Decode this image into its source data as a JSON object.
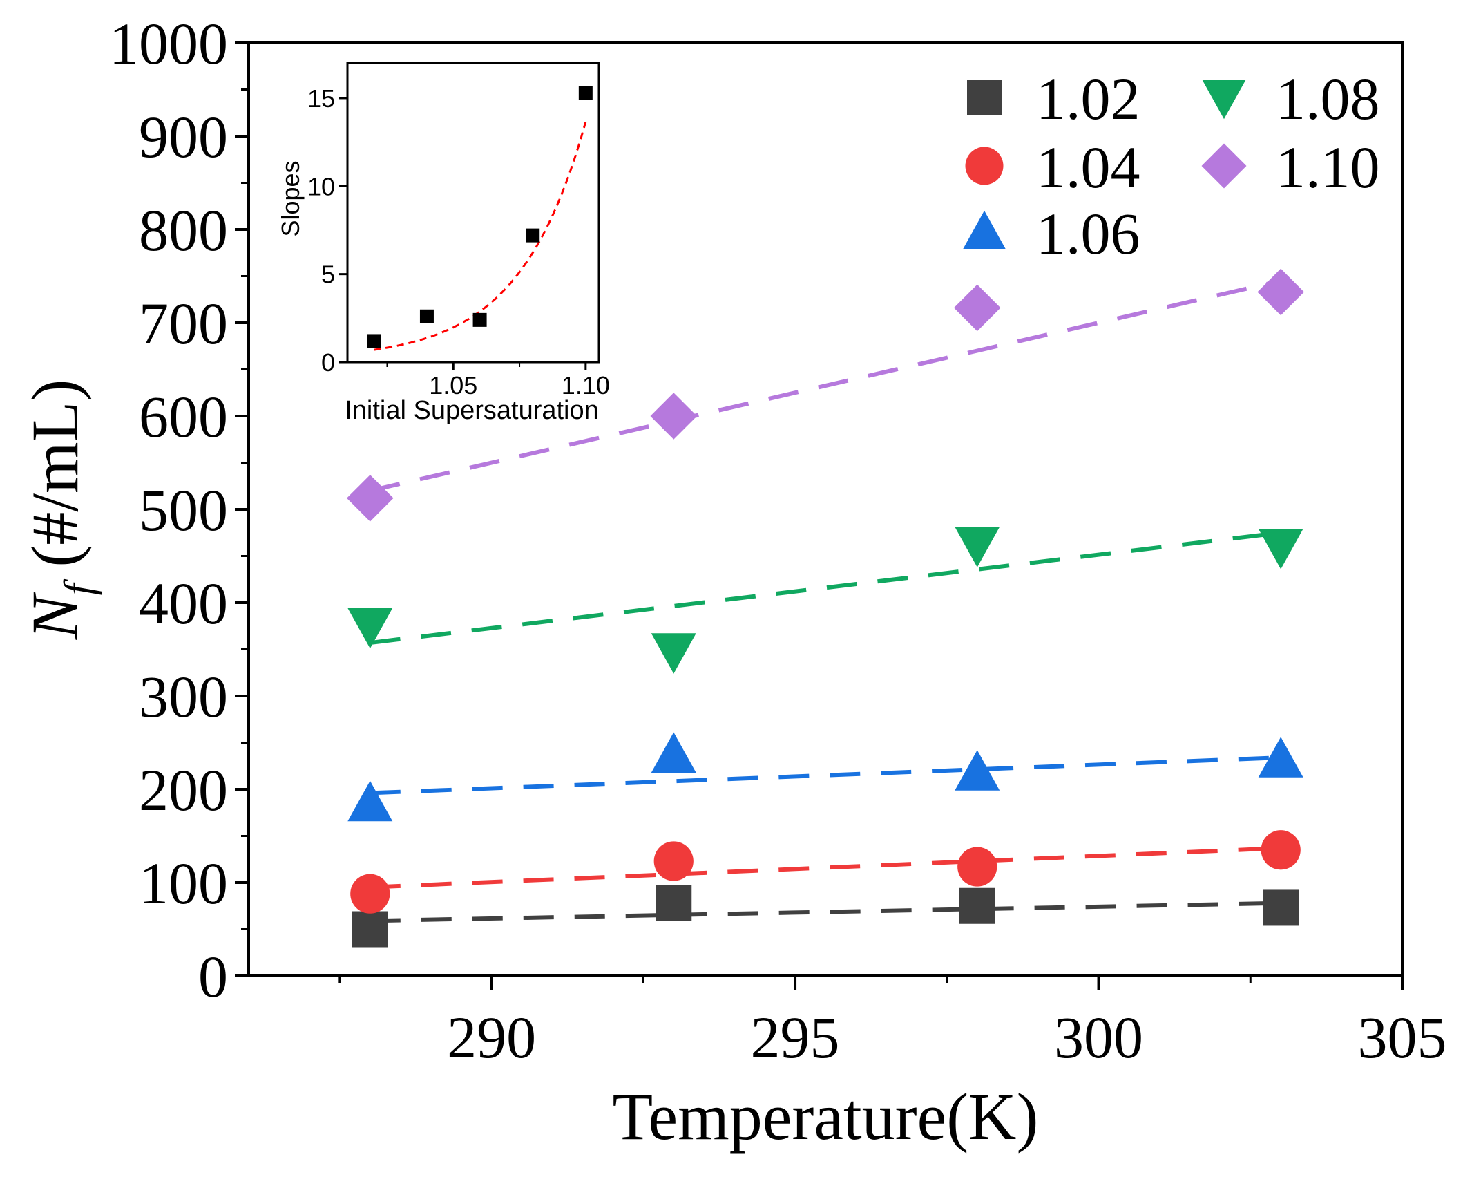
{
  "chart_data": [
    {
      "type": "scatter",
      "role": "main",
      "xlabel": "Temperature(K)",
      "ylabel_main": "N",
      "ylabel_sub": "f",
      "ylabel_rest": " (#/mL)",
      "xlim": [
        286,
        305
      ],
      "ylim": [
        0,
        1000
      ],
      "xticks": [
        290,
        295,
        300,
        305
      ],
      "xtick_labels": [
        "290",
        "295",
        "300",
        "305"
      ],
      "yticks": [
        0,
        100,
        200,
        300,
        400,
        500,
        600,
        700,
        800,
        900,
        1000
      ],
      "ytick_labels": [
        "0",
        "100",
        "200",
        "300",
        "400",
        "500",
        "600",
        "700",
        "800",
        "900",
        "1000"
      ],
      "x": [
        288,
        293,
        298,
        303
      ],
      "series": [
        {
          "name": "1.02",
          "marker": "square",
          "color": "#404040",
          "values": [
            50,
            78,
            75,
            73
          ],
          "fit": [
            59,
            78
          ]
        },
        {
          "name": "1.04",
          "marker": "circle",
          "color": "#f03a3a",
          "values": [
            88,
            123,
            117,
            135
          ],
          "fit": [
            95,
            137
          ]
        },
        {
          "name": "1.06",
          "marker": "triangle-up",
          "color": "#1872e0",
          "values": [
            185,
            237,
            218,
            232
          ],
          "fit": [
            196,
            234
          ]
        },
        {
          "name": "1.08",
          "marker": "triangle-down",
          "color": "#10a860",
          "values": [
            375,
            348,
            462,
            460
          ],
          "fit": [
            357,
            475
          ]
        },
        {
          "name": "1.10",
          "marker": "diamond",
          "color": "#b679dd",
          "values": [
            512,
            600,
            716,
            733
          ],
          "fit": [
            520,
            745
          ]
        }
      ],
      "legend_position": "top-right"
    },
    {
      "type": "scatter",
      "role": "inset",
      "xlabel": "Initial Supersaturation",
      "ylabel": "Slopes",
      "xlim": [
        1.01,
        1.105
      ],
      "ylim": [
        0,
        17
      ],
      "xticks": [
        1.05,
        1.1
      ],
      "xtick_labels": [
        "1.05",
        "1.10"
      ],
      "yticks": [
        0,
        5,
        10,
        15
      ],
      "ytick_labels": [
        "0",
        "5",
        "10",
        "15"
      ],
      "x": [
        1.02,
        1.04,
        1.06,
        1.08,
        1.1
      ],
      "values": [
        1.2,
        2.6,
        2.4,
        7.2,
        15.3
      ],
      "marker": "square",
      "color": "#000000",
      "fit_color": "#ff0000",
      "fit_type": "exponential"
    }
  ]
}
